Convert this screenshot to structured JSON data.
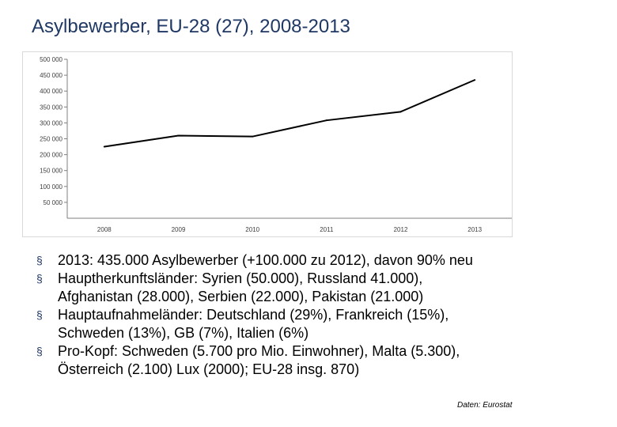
{
  "slide": {
    "title": "Asylbewerber, EU-28 (27), 2008-2013"
  },
  "chart_data": {
    "type": "line",
    "title": "",
    "xlabel": "",
    "ylabel": "",
    "x": [
      "2008",
      "2009",
      "2010",
      "2011",
      "2012",
      "2013"
    ],
    "series": [
      {
        "name": "Asylbewerber",
        "values": [
          225000,
          260000,
          257000,
          308000,
          335000,
          435000
        ]
      }
    ],
    "ylim": [
      0,
      500000
    ],
    "yticks": [
      50000,
      100000,
      150000,
      200000,
      250000,
      300000,
      350000,
      400000,
      450000,
      500000
    ],
    "ytick_labels": [
      "50 000",
      "100 000",
      "150 000",
      "200 000",
      "250 000",
      "300 000",
      "350 000",
      "400 000",
      "450 000",
      "500 000"
    ],
    "xtick_labels": [
      "2008",
      "2009",
      "2010",
      "2011",
      "2012",
      "2013"
    ],
    "grid": false,
    "colors": {
      "line": "#000000",
      "axis": "#7f7f7f",
      "text": "#404040"
    }
  },
  "bullets": {
    "marker": "§",
    "items": [
      {
        "lines": [
          "2013: 435.000 Asylbewerber (+100.000 zu 2012), davon 90% neu"
        ]
      },
      {
        "lines": [
          "Hauptherkunftsländer: Syrien (50.000), Russland 41.000),",
          "Afghanistan (28.000), Serbien (22.000), Pakistan (21.000)"
        ]
      },
      {
        "lines": [
          "Hauptaufnahmeländer:  Deutschland (29%), Frankreich (15%),",
          "Schweden (13%), GB (7%), Italien (6%)"
        ]
      },
      {
        "lines": [
          "Pro-Kopf: Schweden (5.700 pro Mio. Einwohner), Malta (5.300),",
          "Österreich (2.100) Lux (2000); EU-28 insg. 870)"
        ]
      }
    ]
  },
  "source": "Daten: Eurostat"
}
